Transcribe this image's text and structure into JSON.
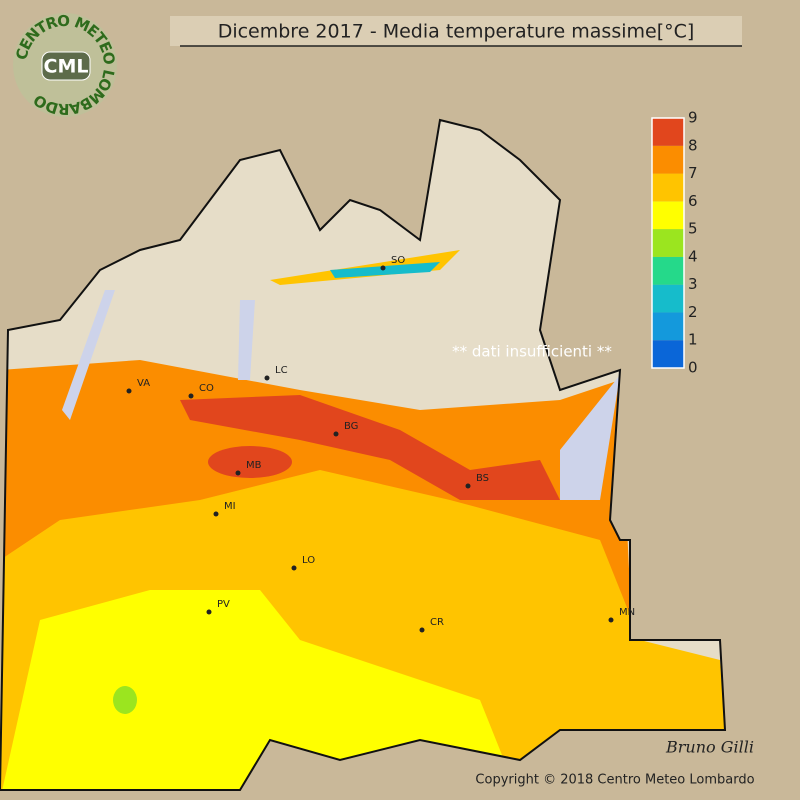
{
  "title": "Dicembre 2017 - Media temperature massime[°C]",
  "logo": {
    "ring_text": "CENTRO METEO LOMBARDO",
    "abbr": "CML"
  },
  "legend": {
    "ticks": [
      0,
      1,
      2,
      3,
      4,
      5,
      6,
      7,
      8,
      9
    ],
    "colors": [
      "#0a66d8",
      "#1499dc",
      "#16bccb",
      "#25d98a",
      "#9be51f",
      "#ffff00",
      "#ffc400",
      "#fb8d00",
      "#e1461d"
    ]
  },
  "cities": [
    "SO",
    "VA",
    "CO",
    "LC",
    "BG",
    "MB",
    "BS",
    "MI",
    "LO",
    "PV",
    "CR",
    "MN"
  ],
  "note": "** dati insufficienti **",
  "copyright": "Copyright © 2018 Centro Meteo Lombardo",
  "signature": "Bruno Gilli"
}
